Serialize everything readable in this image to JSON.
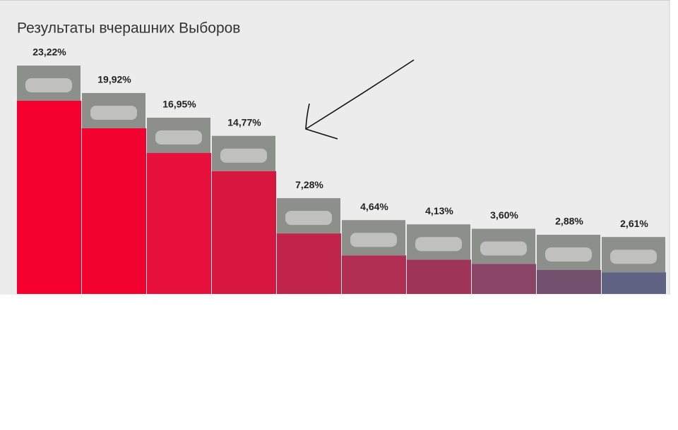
{
  "chart_data": {
    "type": "bar",
    "title": "Результаты вчерашних Выборов",
    "values": [
      23.22,
      19.92,
      16.95,
      14.77,
      7.28,
      4.64,
      4.13,
      3.6,
      2.88,
      2.61
    ],
    "value_labels": [
      "23,22%",
      "19,92%",
      "16,95%",
      "14,77%",
      "7,28%",
      "4,64%",
      "4,13%",
      "3,60%",
      "2,88%",
      "2,61%"
    ],
    "colors": [
      "#f5002e",
      "#f2022f",
      "#e8103d",
      "#d8173f",
      "#c0244a",
      "#b02f52",
      "#9e3558",
      "#8a4466",
      "#74506f",
      "#5f6283"
    ]
  }
}
